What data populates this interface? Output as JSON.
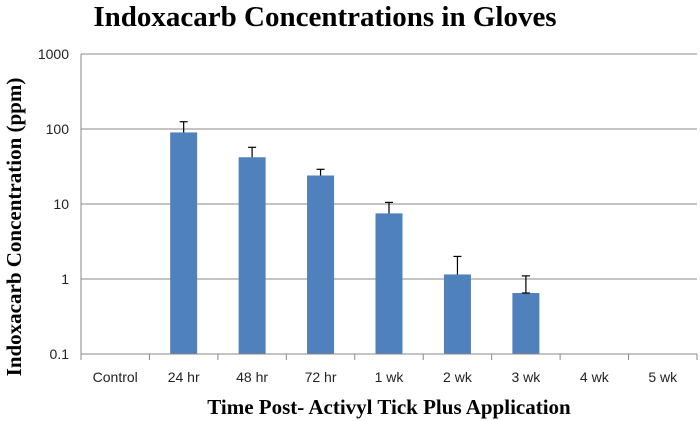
{
  "chart_data": {
    "type": "bar",
    "title": "Indoxacarb Concentrations in Gloves",
    "xlabel": "Time Post- Activyl Tick Plus Application",
    "ylabel": "Indoxacarb Concentration (ppm)",
    "y_scale": "log",
    "ylim": [
      0.1,
      1000
    ],
    "y_ticks": [
      "0.1",
      "1",
      "10",
      "100",
      "1000"
    ],
    "grid": true,
    "bar_color": "#4F81BD",
    "categories": [
      "Control",
      "24 hr",
      "48 hr",
      "72 hr",
      "1 wk",
      "2 wk",
      "3 wk",
      "4 wk",
      "5 wk"
    ],
    "values": [
      null,
      90,
      42,
      24,
      7.5,
      1.15,
      0.65,
      null,
      null
    ],
    "error_upper": [
      null,
      125,
      57,
      29,
      10.5,
      2.0,
      1.1,
      null,
      null
    ],
    "error_lower": [
      null,
      null,
      null,
      null,
      null,
      null,
      0.65,
      null,
      null
    ]
  }
}
